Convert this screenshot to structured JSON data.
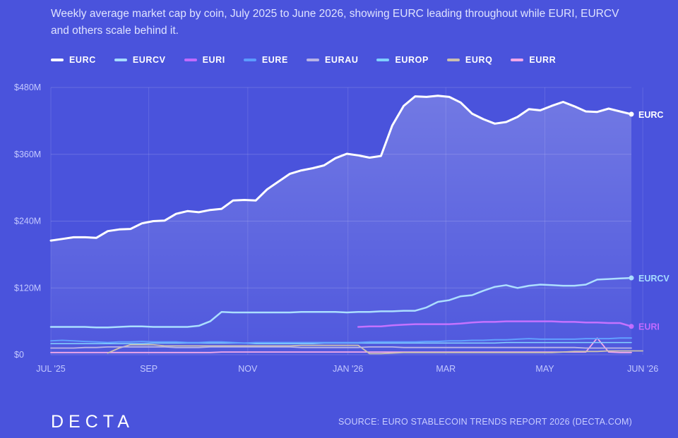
{
  "subtitle": "Weekly average market cap by coin, July 2025 to June 2026, showing EURC leading throughout while EURI, EURCV and others scale behind it.",
  "brand": "DECTA",
  "source": "SOURCE: EURO STABLECOIN TRENDS REPORT 2026 (DECTA.COM)",
  "chart_data": {
    "type": "line",
    "ylim": [
      0,
      480
    ],
    "yticks": [
      0,
      120,
      240,
      360,
      480
    ],
    "ytick_labels": [
      "$0",
      "$120M",
      "$240M",
      "$360M",
      "$480M"
    ],
    "xticks": [
      0,
      8.6,
      17.3,
      26.1,
      34.7,
      43.4,
      52
    ],
    "xtick_labels": [
      "JUL '25",
      "SEP",
      "NOV",
      "JAN '26",
      "MAR",
      "MAY",
      "JUN '26"
    ],
    "grid": true,
    "legend_position": "top-left",
    "series": [
      {
        "name": "EURC",
        "color": "#ffffff",
        "end_label": true,
        "fill": true,
        "width": 3,
        "start": 0,
        "values": [
          205,
          208,
          211,
          211,
          210,
          222,
          225,
          226,
          236,
          240,
          241,
          253,
          258,
          256,
          260,
          262,
          277,
          278,
          277,
          297,
          311,
          325,
          331,
          335,
          340,
          353,
          361,
          358,
          354,
          357,
          412,
          447,
          464,
          463,
          465,
          463,
          453,
          433,
          423,
          415,
          418,
          427,
          441,
          439,
          447,
          454,
          446,
          437,
          436,
          442,
          437,
          432
        ]
      },
      {
        "name": "EURCV",
        "color": "#a6dcff",
        "end_label": true,
        "width": 2.5,
        "start": 0,
        "values": [
          50,
          50,
          50,
          50,
          49,
          49,
          50,
          51,
          51,
          50,
          50,
          50,
          50,
          52,
          60,
          77,
          76,
          76,
          76,
          76,
          76,
          76,
          77,
          77,
          77,
          77,
          76,
          77,
          77,
          78,
          78,
          79,
          79,
          85,
          95,
          98,
          105,
          107,
          115,
          122,
          125,
          120,
          124,
          126,
          125,
          124,
          124,
          126,
          135,
          136,
          137,
          138
        ]
      },
      {
        "name": "EURI",
        "color": "#c16aff",
        "end_label": true,
        "width": 2.5,
        "start": 27,
        "values": [
          50,
          51,
          51,
          53,
          54,
          55,
          55,
          55,
          55,
          56,
          58,
          59,
          59,
          60,
          60,
          60,
          60,
          60,
          59,
          59,
          58,
          58,
          57,
          57,
          51
        ]
      },
      {
        "name": "EURE",
        "color": "#5b9bff",
        "width": 2,
        "start": 0,
        "values": [
          25,
          26,
          25,
          24,
          23,
          22,
          23,
          23,
          24,
          23,
          23,
          23,
          22,
          22,
          23,
          23,
          22,
          21,
          22,
          22,
          22,
          22,
          22,
          22,
          22,
          22,
          22,
          22,
          23,
          23,
          23,
          23,
          23,
          24,
          24,
          25,
          25,
          26,
          26,
          27,
          27,
          28,
          29,
          28,
          28,
          28,
          28,
          29,
          29,
          29,
          30,
          30
        ]
      },
      {
        "name": "EURAU",
        "color": "#b8b3e6",
        "width": 1.8,
        "start": 0,
        "values": [
          12,
          12,
          12,
          13,
          13,
          14,
          14,
          14,
          14,
          14,
          14,
          13,
          13,
          13,
          14,
          14,
          14,
          14,
          14,
          14,
          14,
          14,
          13,
          13,
          13,
          13,
          13,
          13,
          14,
          14,
          14,
          13,
          13,
          13,
          13,
          13,
          13,
          13,
          13,
          13,
          13,
          13,
          13,
          13,
          13,
          13,
          13,
          12,
          12,
          12,
          12,
          12
        ]
      },
      {
        "name": "EUROP",
        "color": "#7fd0ff",
        "width": 1.5,
        "start": 0,
        "values": [
          20,
          20,
          20,
          20,
          20,
          20,
          20,
          20,
          20,
          21,
          21,
          21,
          21,
          21,
          21,
          21,
          21,
          21,
          20,
          20,
          20,
          20,
          20,
          20,
          21,
          21,
          21,
          21,
          21,
          21,
          21,
          21,
          21,
          21,
          21,
          21,
          21,
          21,
          21,
          21,
          22,
          22,
          22,
          22,
          22,
          22,
          22,
          22,
          22,
          22,
          22,
          22
        ]
      },
      {
        "name": "EURQ",
        "color": "#cbbfae",
        "width": 1.8,
        "start": 5,
        "values": [
          3,
          12,
          18,
          18,
          18,
          16,
          16,
          16,
          16,
          16,
          16,
          16,
          16,
          16,
          16,
          16,
          16,
          17,
          17,
          17,
          17,
          17,
          17,
          2,
          2,
          3,
          4,
          4,
          4,
          4,
          4,
          4,
          4,
          4,
          4,
          4,
          4,
          4,
          4,
          4,
          5,
          6,
          6,
          6,
          7,
          7,
          7,
          7
        ]
      },
      {
        "name": "EURR",
        "color": "#f2a6e8",
        "width": 1.8,
        "start": 0,
        "values": [
          4,
          4,
          4,
          4,
          4,
          4,
          4,
          4,
          4,
          4,
          4,
          4,
          4,
          4,
          4,
          5,
          5,
          5,
          5,
          5,
          5,
          5,
          5,
          5,
          5,
          5,
          5,
          5,
          5,
          5,
          5,
          5,
          5,
          5,
          5,
          5,
          5,
          5,
          5,
          5,
          5,
          5,
          5,
          5,
          5,
          5,
          5,
          5,
          30,
          5,
          4,
          4
        ]
      }
    ]
  }
}
